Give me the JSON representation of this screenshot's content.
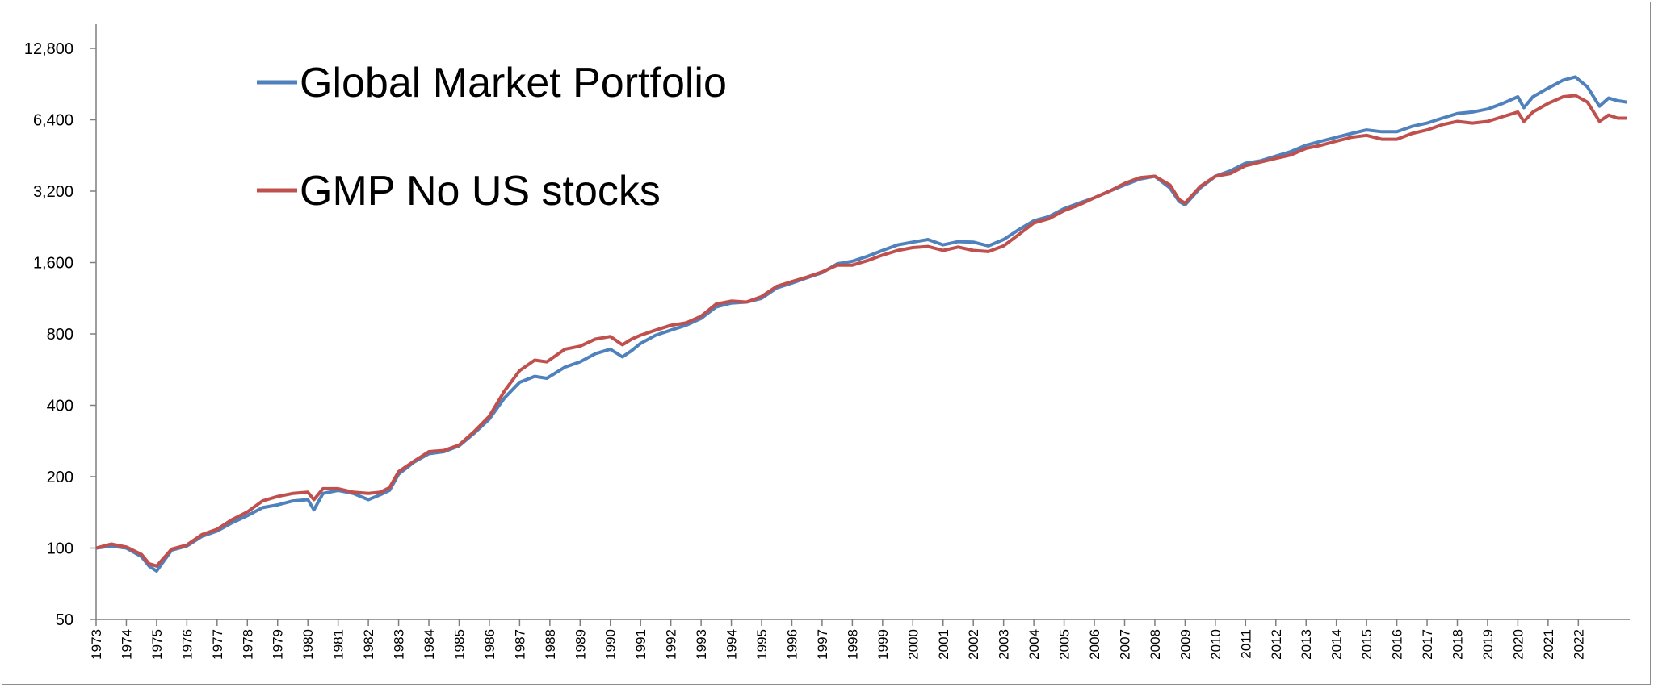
{
  "chart_data": {
    "type": "line",
    "title": "",
    "xlabel": "",
    "ylabel": "",
    "y_scale": "log2",
    "ylim": [
      50,
      12800
    ],
    "y_ticks": [
      50,
      100,
      200,
      400,
      800,
      1600,
      3200,
      6400,
      12800
    ],
    "y_tick_labels": [
      "50",
      "100",
      "200",
      "400",
      "800",
      "1,600",
      "3,200",
      "6,400",
      "12,800"
    ],
    "xlim": [
      1973,
      2023.7
    ],
    "x_ticks": [
      "1973",
      "1974",
      "1975",
      "1976",
      "1977",
      "1978",
      "1979",
      "1980",
      "1981",
      "1982",
      "1983",
      "1984",
      "1985",
      "1986",
      "1987",
      "1988",
      "1989",
      "1990",
      "1991",
      "1992",
      "1993",
      "1994",
      "1995",
      "1996",
      "1997",
      "1998",
      "1999",
      "2000",
      "2001",
      "2002",
      "2003",
      "2004",
      "2005",
      "2006",
      "2007",
      "2008",
      "2009",
      "2010",
      "2011",
      "2012",
      "2013",
      "2014",
      "2015",
      "2016",
      "2017",
      "2018",
      "2019",
      "2020",
      "2021",
      "2022"
    ],
    "grid": false,
    "legend_position": "top-left",
    "series": [
      {
        "name": "Global Market Portfolio",
        "color": "#4f81bd",
        "x": [
          1973,
          1973.5,
          1974,
          1974.5,
          1974.75,
          1975,
          1975.5,
          1976,
          1976.5,
          1977,
          1977.5,
          1978,
          1978.5,
          1979,
          1979.5,
          1980,
          1980.2,
          1980.5,
          1981,
          1981.5,
          1982,
          1982.4,
          1982.7,
          1983,
          1983.5,
          1984,
          1984.5,
          1985,
          1985.5,
          1986,
          1986.5,
          1987,
          1987.5,
          1987.9,
          1988.5,
          1989,
          1989.5,
          1990,
          1990.4,
          1990.7,
          1991,
          1991.5,
          1992,
          1992.5,
          1993,
          1993.5,
          1994,
          1994.5,
          1995,
          1995.5,
          1996,
          1996.5,
          1997,
          1997.5,
          1998,
          1998.5,
          1999,
          1999.5,
          2000,
          2000.5,
          2001,
          2001.5,
          2002,
          2002.5,
          2003,
          2003.5,
          2004,
          2004.5,
          2005,
          2005.5,
          2006,
          2006.5,
          2007,
          2007.5,
          2008,
          2008.5,
          2008.8,
          2009,
          2009.5,
          2010,
          2010.5,
          2011,
          2011.5,
          2012,
          2012.5,
          2013,
          2013.5,
          2014,
          2014.5,
          2015,
          2015.5,
          2016,
          2016.5,
          2017,
          2017.5,
          2018,
          2018.5,
          2019,
          2019.5,
          2020,
          2020.2,
          2020.5,
          2021,
          2021.5,
          2021.9,
          2022.3,
          2022.7,
          2023,
          2023.3,
          2023.6
        ],
        "y": [
          100,
          102,
          100,
          92,
          84,
          80,
          98,
          102,
          112,
          118,
          128,
          137,
          148,
          152,
          158,
          160,
          145,
          170,
          175,
          170,
          160,
          168,
          175,
          205,
          230,
          250,
          255,
          270,
          305,
          350,
          430,
          500,
          530,
          520,
          580,
          610,
          660,
          690,
          640,
          680,
          730,
          790,
          830,
          870,
          930,
          1040,
          1080,
          1090,
          1130,
          1250,
          1310,
          1380,
          1450,
          1580,
          1620,
          1700,
          1800,
          1900,
          1950,
          2000,
          1900,
          1960,
          1950,
          1880,
          2000,
          2200,
          2400,
          2500,
          2700,
          2850,
          3000,
          3200,
          3400,
          3600,
          3700,
          3300,
          2900,
          2800,
          3300,
          3700,
          3900,
          4200,
          4300,
          4500,
          4700,
          5000,
          5200,
          5400,
          5600,
          5800,
          5700,
          5700,
          6000,
          6200,
          6500,
          6800,
          6900,
          7100,
          7500,
          8000,
          7200,
          8000,
          8700,
          9400,
          9700,
          8800,
          7300,
          7900,
          7700,
          7600
        ]
      },
      {
        "name": "GMP No US stocks",
        "color": "#c0504d",
        "x": [
          1973,
          1973.5,
          1974,
          1974.5,
          1974.75,
          1975,
          1975.5,
          1976,
          1976.5,
          1977,
          1977.5,
          1978,
          1978.5,
          1979,
          1979.5,
          1980,
          1980.2,
          1980.5,
          1981,
          1981.5,
          1982,
          1982.4,
          1982.7,
          1983,
          1983.5,
          1984,
          1984.5,
          1985,
          1985.5,
          1986,
          1986.5,
          1987,
          1987.5,
          1987.9,
          1988.5,
          1989,
          1989.5,
          1990,
          1990.4,
          1990.7,
          1991,
          1991.5,
          1992,
          1992.5,
          1993,
          1993.5,
          1994,
          1994.5,
          1995,
          1995.5,
          1996,
          1996.5,
          1997,
          1997.5,
          1998,
          1998.5,
          1999,
          1999.5,
          2000,
          2000.5,
          2001,
          2001.5,
          2002,
          2002.5,
          2003,
          2003.5,
          2004,
          2004.5,
          2005,
          2005.5,
          2006,
          2006.5,
          2007,
          2007.5,
          2008,
          2008.5,
          2008.8,
          2009,
          2009.5,
          2010,
          2010.5,
          2011,
          2011.5,
          2012,
          2012.5,
          2013,
          2013.5,
          2014,
          2014.5,
          2015,
          2015.5,
          2016,
          2016.5,
          2017,
          2017.5,
          2018,
          2018.5,
          2019,
          2019.5,
          2020,
          2020.2,
          2020.5,
          2021,
          2021.5,
          2021.9,
          2022.3,
          2022.7,
          2023,
          2023.3,
          2023.6
        ],
        "y": [
          100,
          104,
          101,
          94,
          86,
          84,
          99,
          103,
          114,
          120,
          132,
          142,
          158,
          165,
          170,
          172,
          160,
          178,
          178,
          172,
          170,
          172,
          180,
          210,
          232,
          255,
          258,
          272,
          310,
          360,
          460,
          560,
          620,
          610,
          690,
          710,
          760,
          780,
          720,
          760,
          790,
          830,
          870,
          890,
          950,
          1070,
          1100,
          1090,
          1150,
          1270,
          1330,
          1390,
          1460,
          1560,
          1560,
          1630,
          1720,
          1800,
          1850,
          1870,
          1800,
          1860,
          1800,
          1780,
          1880,
          2100,
          2350,
          2450,
          2650,
          2800,
          3000,
          3200,
          3450,
          3650,
          3700,
          3400,
          2950,
          2850,
          3350,
          3700,
          3800,
          4100,
          4250,
          4400,
          4550,
          4850,
          5000,
          5200,
          5400,
          5500,
          5300,
          5300,
          5600,
          5800,
          6100,
          6300,
          6200,
          6300,
          6600,
          6900,
          6300,
          6900,
          7500,
          8000,
          8100,
          7600,
          6300,
          6700,
          6500,
          6500
        ]
      }
    ]
  }
}
